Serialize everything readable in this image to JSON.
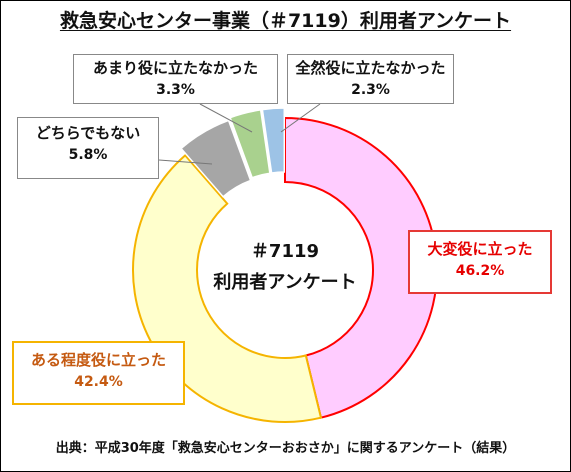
{
  "title": "救急安心センター事業（＃7119）利用者アンケート",
  "center_label": {
    "line1": "＃7119",
    "line2": "利用者アンケート"
  },
  "source": "出典：平成30年度「救急安心センターおおさか」に関するアンケート（結果）",
  "chart_data": {
    "type": "pie",
    "style": "donut",
    "start": "top, clockwise",
    "title": "救急安心センター事業（＃7119）利用者アンケート",
    "slices": [
      {
        "label": "大変役に立った",
        "value": 46.2,
        "value_label": "46.2%",
        "color": "#ffccff",
        "edge": "#ff0000"
      },
      {
        "label": "ある程度役に立った",
        "value": 42.4,
        "value_label": "42.4%",
        "color": "#ffffcc",
        "edge": "#f5b400"
      },
      {
        "label": "どちらでもない",
        "value": 5.8,
        "value_label": "5.8%",
        "color": "#a6a6a6",
        "edge": "#ffffff"
      },
      {
        "label": "あまり役に立たなかった",
        "value": 3.3,
        "value_label": "3.3%",
        "color": "#a9d18e",
        "edge": "#ffffff"
      },
      {
        "label": "全然役に立たなかった",
        "value": 2.3,
        "value_label": "2.3%",
        "color": "#9dc3e6",
        "edge": "#ffffff"
      }
    ]
  }
}
